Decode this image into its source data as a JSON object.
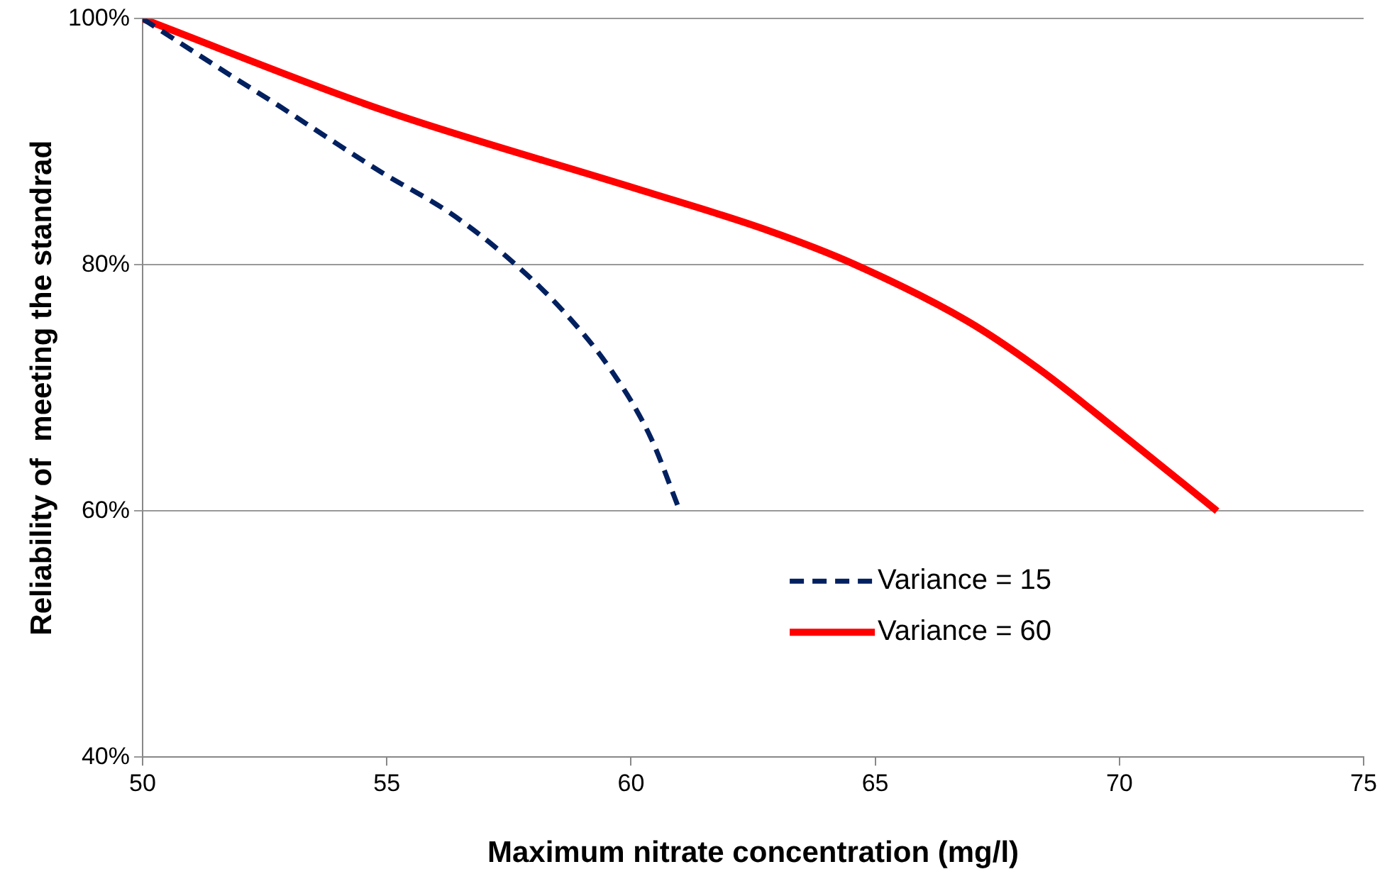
{
  "chart_data": {
    "type": "line",
    "xlabel": "Maximum nitrate concentration (mg/l)",
    "ylabel": "Reliability of  meeting the standrad",
    "xlim": [
      50,
      75
    ],
    "xticks": [
      50,
      55,
      60,
      65,
      70,
      75
    ],
    "ylim": [
      40,
      100
    ],
    "yticks": [
      {
        "value": 40,
        "label": "40%"
      },
      {
        "value": 60,
        "label": "60%"
      },
      {
        "value": 80,
        "label": "80%"
      },
      {
        "value": 100,
        "label": "100%"
      }
    ],
    "grid": "y",
    "legend": "bottom right",
    "marker": "none",
    "series": [
      {
        "name": "Variance = 15",
        "color": "#002060",
        "line_style": "dashed",
        "x": [
          50,
          51.8,
          52.8,
          53.8,
          54.9,
          56.3,
          57.5,
          58.6,
          59.6,
          60.4,
          61
        ],
        "values": [
          100,
          95.4,
          92.9,
          90.3,
          87.5,
          84.2,
          80.5,
          76.3,
          71.4,
          66,
          60
        ]
      },
      {
        "name": "Variance = 60",
        "color": "#ff0000",
        "line_style": "solid",
        "x": [
          50,
          54.9,
          60.1,
          62.8,
          64.6,
          66.9,
          68.4,
          70,
          72
        ],
        "values": [
          100,
          92.6,
          86.2,
          82.8,
          80,
          75.4,
          71.4,
          66.4,
          60
        ]
      }
    ]
  }
}
